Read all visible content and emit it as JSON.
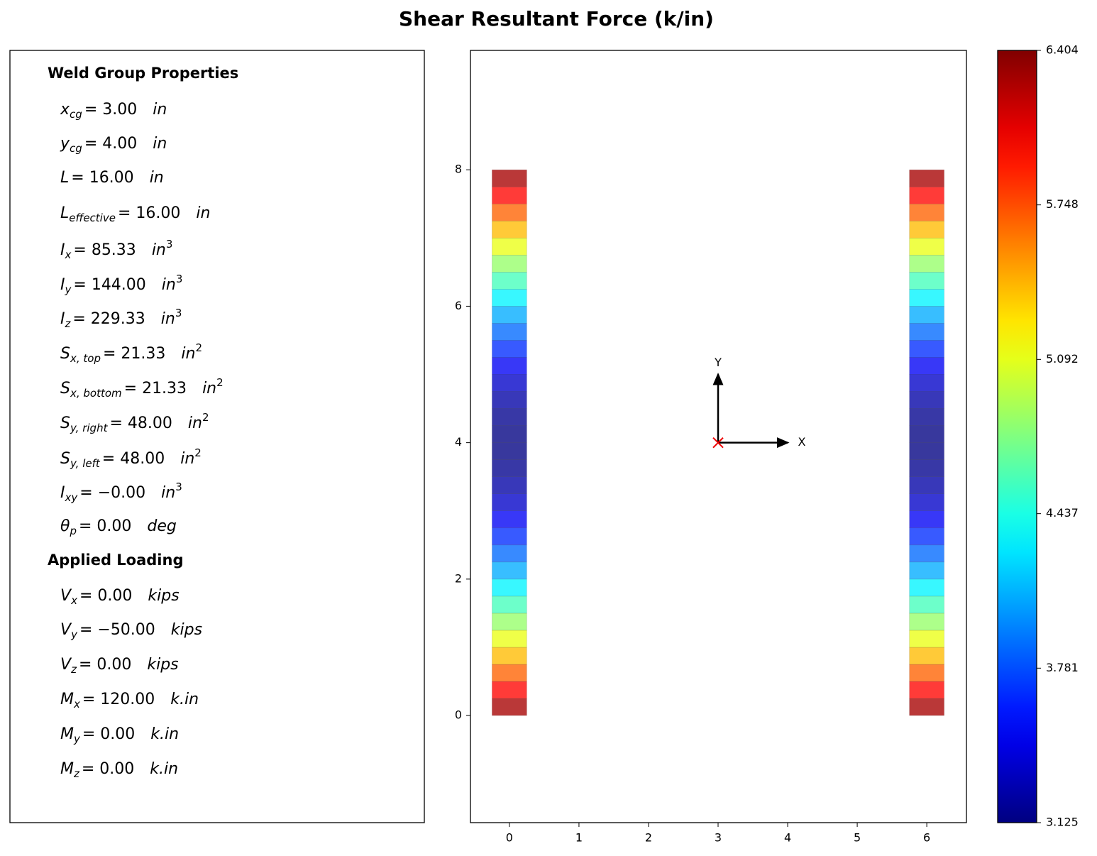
{
  "title": "Shear Resultant Force (k/in)",
  "properties": {
    "heading": "Weld Group Properties",
    "items": [
      {
        "sym": "x",
        "sub": "cg",
        "eq": "= 3.00",
        "unit": "in"
      },
      {
        "sym": "y",
        "sub": "cg",
        "eq": "= 4.00",
        "unit": "in"
      },
      {
        "sym": "L",
        "eq": "= 16.00",
        "unit": "in"
      },
      {
        "sym": "L",
        "sub": "effective",
        "eq": "= 16.00",
        "unit": "in"
      },
      {
        "sym": "I",
        "sub": "x",
        "eq": "= 85.33",
        "unit": "in",
        "unit_sup": "3"
      },
      {
        "sym": "I",
        "sub": "y",
        "eq": "= 144.00",
        "unit": "in",
        "unit_sup": "3"
      },
      {
        "sym": "I",
        "sub": "z",
        "eq": "= 229.33",
        "unit": "in",
        "unit_sup": "3"
      },
      {
        "sym": "S",
        "sub": "x, top",
        "eq": "= 21.33",
        "unit": "in",
        "unit_sup": "2"
      },
      {
        "sym": "S",
        "sub": "x, bottom",
        "eq": "= 21.33",
        "unit": "in",
        "unit_sup": "2"
      },
      {
        "sym": "S",
        "sub": "y, right",
        "eq": "= 48.00",
        "unit": "in",
        "unit_sup": "2"
      },
      {
        "sym": "S",
        "sub": "y, left",
        "eq": "= 48.00",
        "unit": "in",
        "unit_sup": "2"
      },
      {
        "sym": "I",
        "sub": "xy",
        "eq": "= −0.00",
        "unit": "in",
        "unit_sup": "3"
      },
      {
        "sym": "θ",
        "sub": "p",
        "eq": "= 0.00",
        "unit": "deg"
      }
    ]
  },
  "loading": {
    "heading": "Applied Loading",
    "items": [
      {
        "sym": "V",
        "sub": "x",
        "eq": "= 0.00",
        "unit": "kips"
      },
      {
        "sym": "V",
        "sub": "y",
        "eq": "= −50.00",
        "unit": "kips"
      },
      {
        "sym": "V",
        "sub": "z",
        "eq": "= 0.00",
        "unit": "kips"
      },
      {
        "sym": "M",
        "sub": "x",
        "eq": "= 120.00",
        "unit": "k.in"
      },
      {
        "sym": "M",
        "sub": "y",
        "eq": "= 0.00",
        "unit": "k.in"
      },
      {
        "sym": "M",
        "sub": "z",
        "eq": "= 0.00",
        "unit": "k.in"
      }
    ]
  },
  "chart_data": {
    "type": "weld-contour",
    "colormap": "jet",
    "xlim": [
      -0.56,
      6.57
    ],
    "ylim": [
      -1.57,
      9.75
    ],
    "xticks": [
      0,
      1,
      2,
      3,
      4,
      5,
      6
    ],
    "yticks": [
      0,
      2,
      4,
      6,
      8
    ],
    "welds": [
      {
        "x": 0,
        "ystart": 0,
        "yend": 8,
        "values": [
          6.281,
          5.98,
          5.683,
          5.393,
          5.11,
          4.836,
          4.574,
          4.324,
          4.089,
          3.871,
          3.675,
          3.503,
          3.359,
          3.246,
          3.169,
          3.13,
          3.13,
          3.169,
          3.246,
          3.359,
          3.503,
          3.675,
          3.871,
          4.089,
          4.324,
          4.574,
          4.836,
          5.11,
          5.393,
          5.683,
          5.98,
          6.281
        ]
      },
      {
        "x": 6,
        "ystart": 0,
        "yend": 8,
        "values": [
          6.281,
          5.98,
          5.683,
          5.393,
          5.11,
          4.836,
          4.574,
          4.324,
          4.089,
          3.871,
          3.675,
          3.503,
          3.359,
          3.246,
          3.169,
          3.13,
          3.13,
          3.169,
          3.246,
          3.359,
          3.503,
          3.675,
          3.871,
          4.089,
          4.324,
          4.574,
          4.836,
          5.11,
          5.393,
          5.683,
          5.98,
          6.281
        ]
      }
    ],
    "centroid": [
      3,
      4
    ],
    "arrows": [
      {
        "label": "X",
        "x": 4,
        "y": 4
      },
      {
        "label": "Y",
        "x": 3,
        "y": 5
      }
    ],
    "clim": [
      3.125,
      6.404
    ],
    "cticks": [
      3.125,
      3.781,
      4.437,
      5.092,
      5.748,
      6.404
    ]
  }
}
